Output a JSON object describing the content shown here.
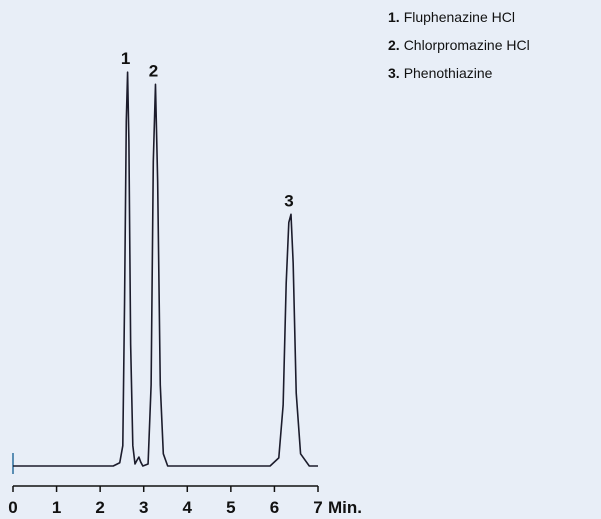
{
  "chart_data": {
    "type": "line",
    "xlabel": "Min.",
    "x": [
      0,
      2.3,
      2.45,
      2.52,
      2.56,
      2.6,
      2.63,
      2.66,
      2.7,
      2.75,
      2.8,
      2.85,
      2.89,
      2.93,
      2.98,
      3.1,
      3.17,
      3.22,
      3.27,
      3.32,
      3.38,
      3.45,
      3.55,
      5.9,
      6.1,
      6.2,
      6.27,
      6.33,
      6.38,
      6.43,
      6.5,
      6.6,
      6.8,
      7
    ],
    "series": [
      {
        "color": "#1c1c2c",
        "values": [
          0,
          0,
          0.8,
          5,
          40,
          85,
          97,
          80,
          30,
          5,
          0.5,
          1.5,
          2.2,
          1,
          0,
          0.5,
          20,
          75,
          94,
          70,
          20,
          3,
          0,
          0,
          2,
          15,
          45,
          60,
          62,
          50,
          18,
          3,
          0,
          0
        ]
      }
    ],
    "xlim": [
      0,
      7
    ],
    "xticks": [
      0,
      1,
      2,
      3,
      4,
      5,
      6,
      7
    ],
    "ylim": [
      0,
      100
    ],
    "annotations": [
      {
        "text": "1",
        "x": 2.63,
        "y": 97
      },
      {
        "text": "2",
        "x": 3.27,
        "y": 94
      },
      {
        "text": "3",
        "x": 6.38,
        "y": 62
      }
    ],
    "legend": [
      {
        "number": "1.",
        "name": "Fluphenazine HCl"
      },
      {
        "number": "2.",
        "name": "Chlorpromazine HCl"
      },
      {
        "number": "3.",
        "name": "Phenothiazine"
      }
    ]
  }
}
